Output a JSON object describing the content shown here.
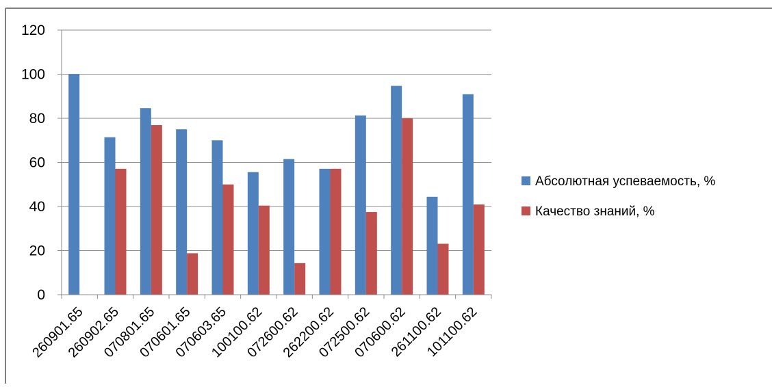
{
  "chart_data": {
    "type": "bar",
    "title": "",
    "xlabel": "",
    "ylabel": "",
    "ylim": [
      0,
      120
    ],
    "yticks": [
      0,
      20,
      40,
      60,
      80,
      100,
      120
    ],
    "grid": true,
    "legend_position": "right",
    "categories": [
      "260901.65",
      "260902.65",
      "070801.65",
      "070601.65",
      "070603.65",
      "100100.62",
      "072600.62",
      "262200.62",
      "072500.62",
      "070600.62",
      "261100.62",
      "101100.62"
    ],
    "series": [
      {
        "name": "Абсолютная успеваемость, %",
        "color": "#4f81bd",
        "values": [
          100,
          71.4,
          84.6,
          75,
          70,
          55.6,
          61.5,
          57.1,
          81.3,
          94.7,
          44.4,
          90.9
        ]
      },
      {
        "name": "Качество знаний, %",
        "color": "#c0504d",
        "values": [
          0,
          57.1,
          76.9,
          18.8,
          50,
          40.4,
          14.3,
          57.1,
          37.5,
          80,
          23.1,
          40.9
        ]
      }
    ]
  }
}
